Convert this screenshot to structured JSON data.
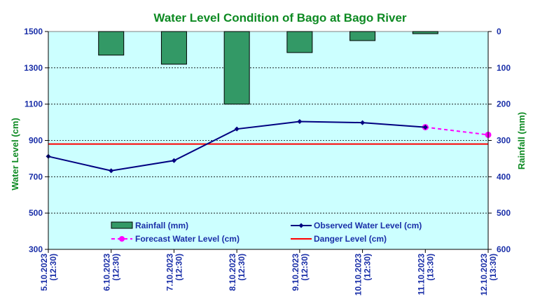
{
  "chart_data": {
    "type": "bar+line",
    "title": "Water Level Condition of Bago at Bago River",
    "ylabel_left": "Water Level (cm)",
    "ylabel_right": "Rainfall (mm)",
    "ylim_left": [
      300,
      1500
    ],
    "yticks_left": [
      300,
      500,
      700,
      900,
      1100,
      1300,
      1500
    ],
    "ylim_right": [
      600,
      0
    ],
    "yticks_right": [
      0,
      100,
      200,
      300,
      400,
      500,
      600
    ],
    "right_axis_inverted": true,
    "grid": "horizontal dashed",
    "categories": [
      {
        "date": "5.10.2023",
        "time": "(12:30)"
      },
      {
        "date": "6.10.2023",
        "time": "(12:30)"
      },
      {
        "date": "7.10.2023",
        "time": "(12:30)"
      },
      {
        "date": "8.10.2023",
        "time": "(12:30)"
      },
      {
        "date": "9.10.2023",
        "time": "(12:30)"
      },
      {
        "date": "10.10.2023",
        "time": "(12:30)"
      },
      {
        "date": "11.10.2023",
        "time": "(13:30)"
      },
      {
        "date": "12.10.2023",
        "time": "(13:30)"
      }
    ],
    "rainfall": {
      "name": "Rainfall (mm)",
      "color": "#339966",
      "values": [
        0,
        65,
        90,
        200,
        58,
        25,
        6,
        0
      ]
    },
    "observed": {
      "name": "Observed Water Level (cm)",
      "color": "#000080",
      "values": [
        812,
        733,
        789,
        963,
        1004,
        998,
        973,
        null
      ]
    },
    "forecast": {
      "name": "Forecast Water Level (cm)",
      "color": "#ff00ff",
      "values": [
        null,
        null,
        null,
        null,
        null,
        null,
        973,
        931
      ]
    },
    "danger": {
      "name": "Danger Level (cm)",
      "color": "#ff0000",
      "value": 880
    },
    "legend": {
      "placement": "bottom-inside",
      "entries": [
        "Rainfall (mm)",
        "Observed Water Level (cm)",
        "Forecast Water Level (cm)",
        "Danger Level (cm)"
      ]
    },
    "colors": {
      "plot_background": "#ccffff",
      "axis_text": "#1a2fa8",
      "title_text": "#0d8a22"
    }
  }
}
